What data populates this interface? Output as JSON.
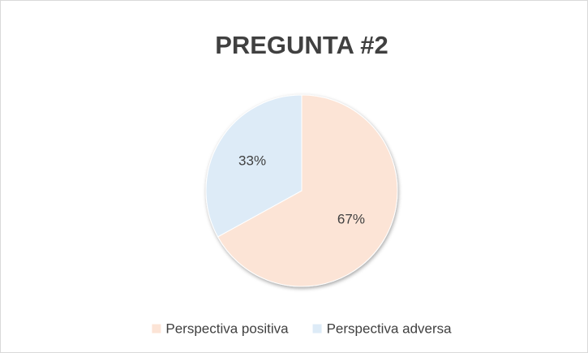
{
  "chart_data": {
    "type": "pie",
    "title": "PREGUNTA #2",
    "categories": [
      "Perspectiva positiva",
      "Perspectiva adversa"
    ],
    "values": [
      67,
      33
    ],
    "value_labels": [
      "67%",
      "33%"
    ],
    "colors": [
      "#fce4d6",
      "#ddebf7"
    ],
    "legend": "bottom"
  }
}
